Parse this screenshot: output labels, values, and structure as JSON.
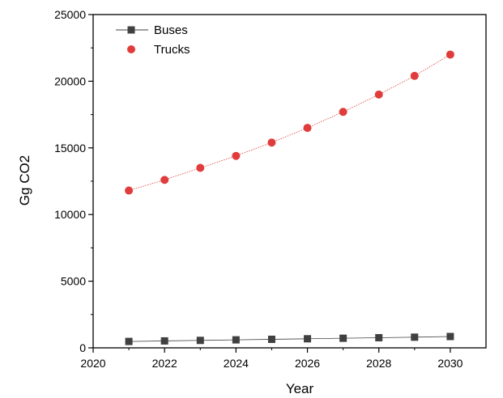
{
  "chart_data": {
    "type": "scatter",
    "x": [
      2021,
      2022,
      2023,
      2024,
      2025,
      2026,
      2027,
      2028,
      2029,
      2030
    ],
    "series": [
      {
        "name": "Buses",
        "marker": "square",
        "color": "#404040",
        "line": "solid",
        "values": [
          480,
          520,
          560,
          600,
          640,
          680,
          720,
          760,
          800,
          850
        ]
      },
      {
        "name": "Trucks",
        "marker": "circle",
        "color": "#e03c3c",
        "line": "dotted",
        "values": [
          11800,
          12600,
          13500,
          14400,
          15400,
          16500,
          17700,
          19000,
          20400,
          22000
        ]
      }
    ],
    "xlabel": "Year",
    "ylabel": "Gg CO2",
    "xlim": [
      2020,
      2031
    ],
    "ylim": [
      0,
      25000
    ],
    "x_ticks": [
      "2020",
      "2022",
      "2024",
      "2026",
      "2028",
      "2030"
    ],
    "y_ticks": [
      "0",
      "5000",
      "10000",
      "15000",
      "20000",
      "25000"
    ],
    "grid": false,
    "legend_position": "top-left"
  }
}
